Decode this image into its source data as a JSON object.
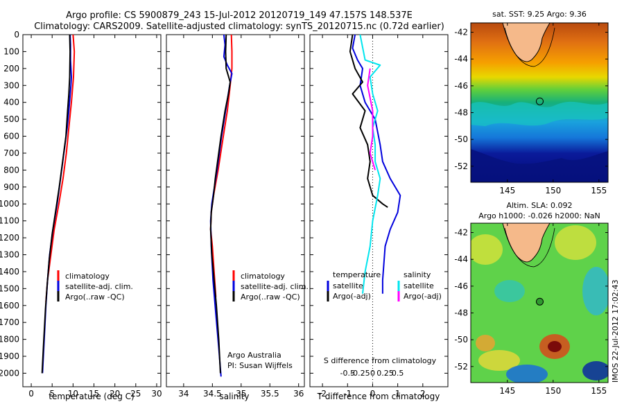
{
  "title": {
    "line1": "Argo profile: CS 5900879_243 15-Jul-2012 20120719_149 47.157S 148.537E",
    "line2": "Climatology: CARS2009. Satellite-adjusted climatology: synTS_20120715.nc (0.72d earlier)"
  },
  "depth_ticks": [
    "0",
    "100",
    "200",
    "300",
    "400",
    "500",
    "600",
    "700",
    "800",
    "900",
    "1000",
    "1100",
    "1200",
    "1300",
    "1400",
    "1500",
    "1600",
    "1700",
    "1800",
    "1900",
    "2000"
  ],
  "colors": {
    "red": "#ff0000",
    "blue": "#0000dd",
    "black": "#000000",
    "cyan": "#00e5ee",
    "magenta": "#ff00ff"
  },
  "chart_data": [
    {
      "type": "line",
      "name": "temperature",
      "xlabel": "temperature (deg C)",
      "xlim": [
        -2,
        31
      ],
      "ylim": [
        0,
        2080
      ],
      "xticks": [
        0,
        5,
        10,
        15,
        20,
        25,
        30
      ],
      "legend": [
        "climatology",
        "satellite-adj. clim.",
        "Argo(..raw -QC)"
      ],
      "series": [
        {
          "name": "climatology",
          "color": "red",
          "points": [
            [
              10,
              0
            ],
            [
              10.3,
              100
            ],
            [
              10.1,
              250
            ],
            [
              9.6,
              400
            ],
            [
              9.0,
              550
            ],
            [
              8.4,
              700
            ],
            [
              7.6,
              850
            ],
            [
              6.6,
              1000
            ],
            [
              5.5,
              1150
            ],
            [
              4.7,
              1300
            ],
            [
              3.9,
              1450
            ],
            [
              3.5,
              1580
            ]
          ]
        },
        {
          "name": "satellite-adj. clim.",
          "color": "blue",
          "points": [
            [
              9.3,
              0
            ],
            [
              9.4,
              60
            ],
            [
              9.4,
              150
            ],
            [
              9.6,
              250
            ],
            [
              9.5,
              300
            ],
            [
              9.0,
              450
            ],
            [
              8.6,
              550
            ],
            [
              7.8,
              700
            ],
            [
              7.0,
              850
            ],
            [
              6.2,
              1000
            ],
            [
              5.2,
              1150
            ],
            [
              4.4,
              1300
            ],
            [
              3.9,
              1450
            ],
            [
              3.5,
              1600
            ],
            [
              3.1,
              1800
            ],
            [
              2.8,
              1950
            ],
            [
              2.7,
              2000
            ]
          ]
        },
        {
          "name": "Argo(..raw -QC)",
          "color": "black",
          "points": [
            [
              9.2,
              0
            ],
            [
              9.3,
              100
            ],
            [
              9.2,
              250
            ],
            [
              9.0,
              350
            ],
            [
              8.7,
              450
            ],
            [
              8.3,
              600
            ],
            [
              7.5,
              750
            ],
            [
              6.7,
              900
            ],
            [
              5.8,
              1050
            ],
            [
              5.0,
              1180
            ],
            [
              4.3,
              1330
            ],
            [
              3.8,
              1480
            ],
            [
              3.4,
              1620
            ],
            [
              3.0,
              1800
            ],
            [
              2.7,
              1950
            ],
            [
              2.6,
              2000
            ]
          ]
        }
      ]
    },
    {
      "type": "line",
      "name": "salinity",
      "xlabel": "salinity",
      "xlim": [
        33.7,
        36.1
      ],
      "ylim": [
        0,
        2080
      ],
      "xticks": [
        34,
        34.5,
        35,
        35.5,
        36
      ],
      "legend": [
        "climatology",
        "satellite-adj. clim.",
        "Argo(..raw -QC)"
      ],
      "annotation": [
        "Argo Australia",
        "PI: Susan Wijffels"
      ],
      "series": [
        {
          "name": "climatology",
          "color": "red",
          "points": [
            [
              34.83,
              0
            ],
            [
              34.84,
              100
            ],
            [
              34.84,
              200
            ],
            [
              34.81,
              300
            ],
            [
              34.76,
              450
            ],
            [
              34.69,
              600
            ],
            [
              34.6,
              800
            ],
            [
              34.52,
              950
            ],
            [
              34.48,
              1050
            ],
            [
              34.47,
              1150
            ],
            [
              34.5,
              1250
            ],
            [
              34.53,
              1400
            ],
            [
              34.56,
              1550
            ]
          ]
        },
        {
          "name": "satellite-adj. clim.",
          "color": "blue",
          "points": [
            [
              34.7,
              0
            ],
            [
              34.72,
              60
            ],
            [
              34.7,
              130
            ],
            [
              34.76,
              180
            ],
            [
              34.84,
              230
            ],
            [
              34.8,
              300
            ],
            [
              34.73,
              450
            ],
            [
              34.66,
              600
            ],
            [
              34.58,
              800
            ],
            [
              34.49,
              1000
            ],
            [
              34.47,
              1100
            ],
            [
              34.48,
              1250
            ],
            [
              34.51,
              1450
            ],
            [
              34.56,
              1650
            ],
            [
              34.61,
              1850
            ],
            [
              34.65,
              2020
            ]
          ]
        },
        {
          "name": "Argo(..raw -QC)",
          "color": "black",
          "points": [
            [
              34.74,
              0
            ],
            [
              34.73,
              100
            ],
            [
              34.74,
              200
            ],
            [
              34.81,
              280
            ],
            [
              34.78,
              350
            ],
            [
              34.72,
              450
            ],
            [
              34.65,
              600
            ],
            [
              34.59,
              750
            ],
            [
              34.55,
              850
            ],
            [
              34.52,
              950
            ],
            [
              34.48,
              1050
            ],
            [
              34.47,
              1150
            ],
            [
              34.49,
              1300
            ],
            [
              34.53,
              1450
            ],
            [
              34.57,
              1600
            ],
            [
              34.61,
              1800
            ],
            [
              34.64,
              2000
            ]
          ]
        }
      ]
    },
    {
      "type": "line",
      "name": "differences",
      "xlabel": "T difference from climatology",
      "xlabel2": "S difference from climatology",
      "xlim": [
        -2.5,
        3
      ],
      "ylim": [
        0,
        2080
      ],
      "xticks": [
        -2,
        -1,
        0,
        1,
        2
      ],
      "xticks2": [
        "-0.5",
        "-0.25",
        "0",
        "0.25",
        "0.5"
      ],
      "legend_left": {
        "header": "temperature",
        "items": [
          "satellite",
          "Argo(-adj)"
        ]
      },
      "legend_right": {
        "header": "salinity",
        "items": [
          "satellite",
          "Argo(-adj)"
        ]
      },
      "series": [
        {
          "name": "T satellite",
          "color": "blue",
          "points": [
            [
              -0.7,
              0
            ],
            [
              -0.8,
              80
            ],
            [
              -0.6,
              150
            ],
            [
              -0.4,
              200
            ],
            [
              -0.5,
              300
            ],
            [
              -0.3,
              400
            ],
            [
              0.1,
              500
            ],
            [
              0.3,
              650
            ],
            [
              0.4,
              750
            ],
            [
              0.7,
              850
            ],
            [
              1.1,
              950
            ],
            [
              1.0,
              1050
            ],
            [
              0.7,
              1150
            ],
            [
              0.5,
              1250
            ],
            [
              0.4,
              1450
            ],
            [
              0.4,
              1530
            ]
          ]
        },
        {
          "name": "T Argo(-adj)",
          "color": "black",
          "points": [
            [
              -0.8,
              0
            ],
            [
              -0.9,
              100
            ],
            [
              -0.7,
              200
            ],
            [
              -0.4,
              280
            ],
            [
              -0.8,
              350
            ],
            [
              -0.3,
              450
            ],
            [
              -0.5,
              550
            ],
            [
              -0.2,
              650
            ],
            [
              -0.1,
              750
            ],
            [
              -0.2,
              850
            ],
            [
              0,
              950
            ],
            [
              0.4,
              1000
            ],
            [
              0.6,
              1020
            ]
          ]
        },
        {
          "name": "S satellite",
          "color": "cyan",
          "points": [
            [
              -0.5,
              0
            ],
            [
              -0.3,
              150
            ],
            [
              0.3,
              180
            ],
            [
              -0.1,
              250
            ],
            [
              0,
              350
            ],
            [
              0.2,
              450
            ],
            [
              0,
              550
            ],
            [
              0.1,
              650
            ],
            [
              0.1,
              750
            ],
            [
              0.3,
              850
            ],
            [
              0.2,
              950
            ],
            [
              0,
              1100
            ],
            [
              -0.1,
              1250
            ],
            [
              -0.3,
              1400
            ],
            [
              -0.4,
              1530
            ]
          ]
        },
        {
          "name": "S Argo(-adj)",
          "color": "magenta",
          "points": [
            [
              -0.1,
              200
            ],
            [
              -0.2,
              300
            ],
            [
              0,
              450
            ],
            [
              0,
              600
            ],
            [
              -0.1,
              700
            ],
            [
              0.1,
              800
            ]
          ]
        }
      ]
    },
    {
      "type": "heatmap",
      "name": "sst-map",
      "title": "sat. SST: 9.25 Argo: 9.36",
      "xticks": [
        145,
        150,
        155
      ],
      "yticks": [
        -42,
        -44,
        -46,
        -48,
        -50,
        -52
      ],
      "xlim": [
        141,
        156
      ],
      "ylim": [
        -53.2,
        -41.3
      ],
      "float": {
        "lon": 148.537,
        "lat": -47.157
      }
    },
    {
      "type": "heatmap",
      "name": "sla-map",
      "title1": "Altim. SLA: 0.092",
      "title2": "Argo h1000: -0.026 h2000: NaN",
      "xticks": [
        145,
        150,
        155
      ],
      "yticks": [
        -42,
        -44,
        -46,
        -48,
        -50,
        -52
      ],
      "xlim": [
        141,
        156
      ],
      "ylim": [
        -53.2,
        -41.3
      ],
      "float": {
        "lon": 148.537,
        "lat": -47.157
      },
      "stamp": "IMOS 22-Jul-2012 17:02:43"
    }
  ]
}
